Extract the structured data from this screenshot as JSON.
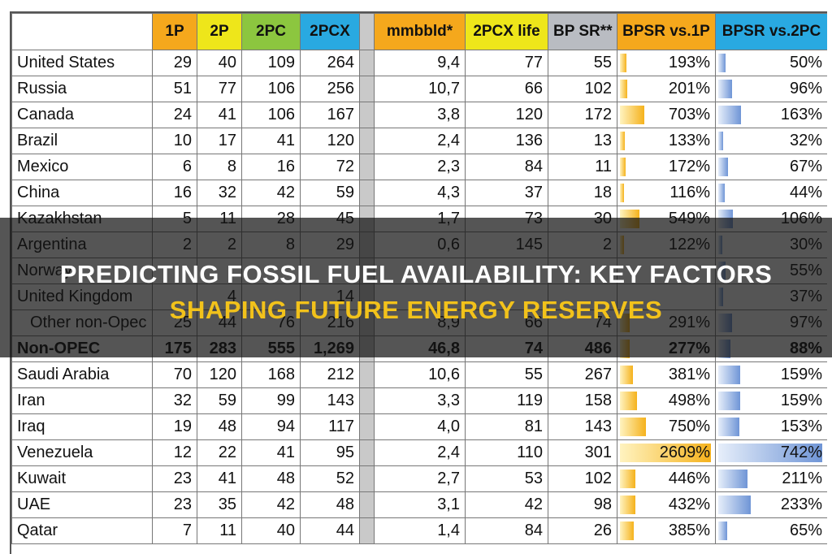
{
  "header": {
    "title": "PREDICTING FOSSIL FUEL AVAILABILITY: KEY FACTORS",
    "subtitle": "SHAPING FUTURE ENERGY RESERVES"
  },
  "table": {
    "columns": [
      "1P",
      "2P",
      "2PC",
      "2PCX",
      "mmbbld*",
      "2PCX life",
      "BP SR**",
      "BPSR vs.1P",
      "BPSR vs.2PC"
    ],
    "rows": [
      [
        "United States",
        "29",
        "40",
        "109",
        "264",
        "9,4",
        "77",
        "55",
        "193%",
        "50%"
      ],
      [
        "Russia",
        "51",
        "77",
        "106",
        "256",
        "10,7",
        "66",
        "102",
        "201%",
        "96%"
      ],
      [
        "Canada",
        "24",
        "41",
        "106",
        "167",
        "3,8",
        "120",
        "172",
        "703%",
        "163%"
      ],
      [
        "Brazil",
        "10",
        "17",
        "41",
        "120",
        "2,4",
        "136",
        "13",
        "133%",
        "32%"
      ],
      [
        "Mexico",
        "6",
        "8",
        "16",
        "72",
        "2,3",
        "84",
        "11",
        "172%",
        "67%"
      ],
      [
        "China",
        "16",
        "32",
        "42",
        "59",
        "4,3",
        "37",
        "18",
        "116%",
        "44%"
      ],
      [
        "Kazakhstan",
        "5",
        "11",
        "28",
        "45",
        "1,7",
        "73",
        "30",
        "549%",
        "106%"
      ],
      [
        "Argentina",
        "2",
        "2",
        "8",
        "29",
        "0,6",
        "145",
        "2",
        "122%",
        "30%"
      ],
      [
        "Norway",
        null,
        null,
        null,
        null,
        null,
        null,
        null,
        null,
        "55%"
      ],
      [
        "United Kingdom",
        null,
        "4",
        null,
        "14",
        null,
        null,
        null,
        null,
        "37%"
      ],
      [
        "Other non-Opec",
        "25",
        "44",
        "76",
        "216",
        "8,9",
        "66",
        "74",
        "291%",
        "97%"
      ],
      [
        "Non-OPEC",
        "175",
        "283",
        "555",
        "1,269",
        "46,8",
        "74",
        "486",
        "277%",
        "88%"
      ],
      [
        "Saudi Arabia",
        "70",
        "120",
        "168",
        "212",
        "10,6",
        "55",
        "267",
        "381%",
        "159%"
      ],
      [
        "Iran",
        "32",
        "59",
        "99",
        "143",
        "3,3",
        "119",
        "158",
        "498%",
        "159%"
      ],
      [
        "Iraq",
        "19",
        "48",
        "94",
        "117",
        "4,0",
        "81",
        "143",
        "750%",
        "153%"
      ],
      [
        "Venezuela",
        "12",
        "22",
        "41",
        "95",
        "2,4",
        "110",
        "301",
        "2609%",
        "742%"
      ],
      [
        "Kuwait",
        "23",
        "41",
        "48",
        "52",
        "2,7",
        "53",
        "102",
        "446%",
        "211%"
      ],
      [
        "UAE",
        "23",
        "35",
        "42",
        "48",
        "3,1",
        "42",
        "98",
        "432%",
        "233%"
      ],
      [
        "Qatar",
        "7",
        "11",
        "40",
        "44",
        "1,4",
        "84",
        "26",
        "385%",
        "65%"
      ]
    ]
  }
}
